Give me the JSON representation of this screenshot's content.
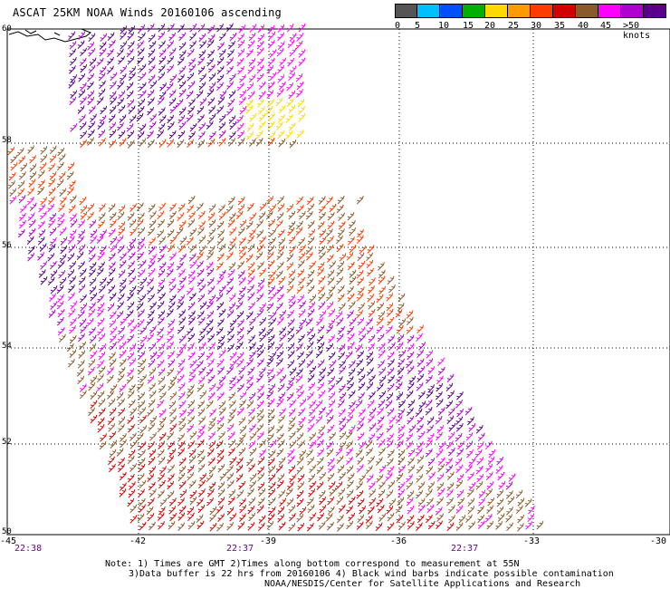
{
  "title": "ASCAT 25KM NOAA Winds 20160106 ascending",
  "legend": {
    "colors": [
      "#555555",
      "#00bfff",
      "#0050ff",
      "#00b000",
      "#ffd800",
      "#ff9a00",
      "#ff3c00",
      "#d40000",
      "#8b5a2b",
      "#ff00ff",
      "#b000d0",
      "#5a008a"
    ],
    "labels": [
      "0",
      "5",
      "10",
      "15",
      "20",
      "25",
      "30",
      "35",
      "40",
      "45",
      ">50 knots"
    ]
  },
  "map": {
    "lat_labels": [
      "60",
      "58",
      "56",
      "54",
      "52",
      "50"
    ],
    "lon_labels": [
      "-45",
      "-42",
      "-39",
      "-36",
      "-33",
      "-30"
    ],
    "time_labels": [
      "22:38",
      "22:37",
      "22:37"
    ]
  },
  "notes": {
    "line1": "Note: 1) Times are GMT 2)Times along bottom correspond to measurement at 55N",
    "line2": "3)Data buffer is 22 hrs from 20160106 4) Black wind barbs indicate possible contamination",
    "line3": "NOAA/NESDIS/Center for Satellite Applications and Research"
  }
}
